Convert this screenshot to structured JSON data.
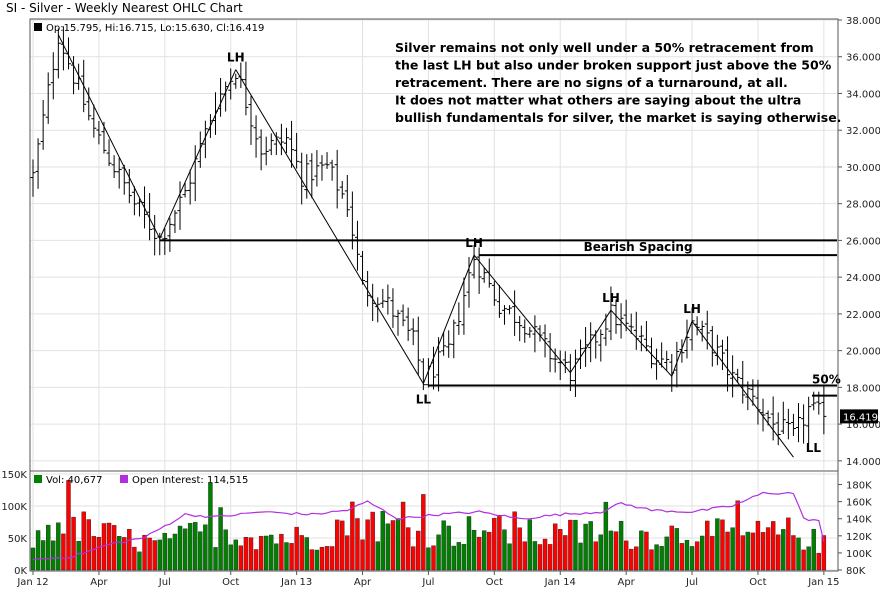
{
  "chart_data": [
    {
      "type": "ohlc",
      "title": "SI - Silver - Weekly Nearest OHLC Chart",
      "ohlc_label": "Op:15.795, Hi:16.715, Lo:15.630, Cl:16.419",
      "last_close_label": "16.419",
      "last_close": 16.419,
      "ylim": [
        13.5,
        38.0
      ],
      "y_ticks": [
        "38.000",
        "36.000",
        "34.000",
        "32.000",
        "30.000",
        "28.000",
        "26.000",
        "24.000",
        "22.000",
        "20.000",
        "18.000",
        "16.000",
        "14.000"
      ],
      "y_tick_values": [
        38,
        36,
        34,
        32,
        30,
        28,
        26,
        24,
        22,
        20,
        18,
        16,
        14
      ],
      "x_ticks": [
        "Jan 12",
        "Apr",
        "Jul",
        "Oct",
        "Jan 13",
        "Apr",
        "Jul",
        "Oct",
        "Jan 14",
        "Apr",
        "Jul",
        "Oct",
        "Jan 15"
      ],
      "week_range": [
        0,
        158
      ],
      "x_tick_weeks": [
        0,
        13,
        26,
        39,
        52,
        65,
        78,
        91,
        104,
        117,
        130,
        143,
        156
      ],
      "anchors": [
        {
          "w": 0,
          "p": 29.5
        },
        {
          "w": 5,
          "p": 37.2
        },
        {
          "w": 12,
          "p": 32.0
        },
        {
          "w": 20,
          "p": 28.0
        },
        {
          "w": 25,
          "p": 26.1
        },
        {
          "w": 30,
          "p": 28.6
        },
        {
          "w": 36,
          "p": 33.5
        },
        {
          "w": 40,
          "p": 35.3
        },
        {
          "w": 45,
          "p": 31.0
        },
        {
          "w": 50,
          "p": 31.5
        },
        {
          "w": 53,
          "p": 29.5
        },
        {
          "w": 58,
          "p": 30.0
        },
        {
          "w": 62,
          "p": 28.0
        },
        {
          "w": 65,
          "p": 23.5
        },
        {
          "w": 70,
          "p": 22.5
        },
        {
          "w": 75,
          "p": 20.5
        },
        {
          "w": 77,
          "p": 18.4
        },
        {
          "w": 82,
          "p": 20.0
        },
        {
          "w": 87,
          "p": 25.1
        },
        {
          "w": 92,
          "p": 22.5
        },
        {
          "w": 97,
          "p": 21.5
        },
        {
          "w": 102,
          "p": 19.8
        },
        {
          "w": 106,
          "p": 18.8
        },
        {
          "w": 110,
          "p": 20.3
        },
        {
          "w": 114,
          "p": 22.0
        },
        {
          "w": 118,
          "p": 21.0
        },
        {
          "w": 123,
          "p": 19.6
        },
        {
          "w": 126,
          "p": 19.3
        },
        {
          "w": 130,
          "p": 21.5
        },
        {
          "w": 134,
          "p": 20.3
        },
        {
          "w": 138,
          "p": 18.5
        },
        {
          "w": 142,
          "p": 17.4
        },
        {
          "w": 146,
          "p": 16.0
        },
        {
          "w": 150,
          "p": 15.3
        },
        {
          "w": 153,
          "p": 16.8
        },
        {
          "w": 156,
          "p": 16.4
        }
      ],
      "notes": [
        "Silver remains not only well under a 50% retracement from",
        "the last LH but also under broken support just above the 50%",
        "retracement.  There are no signs of a turnaround, at all.",
        "It does not matter what others are saying about the ultra",
        "bullish fundamentals for silver, the market is saying otherwise."
      ],
      "annotations": {
        "lh_labels": [
          "LH",
          "LH",
          "LH",
          "LH"
        ],
        "lh_points": [
          {
            "w": 40,
            "p": 35.3
          },
          {
            "w": 87,
            "p": 25.2
          },
          {
            "w": 114,
            "p": 22.2
          },
          {
            "w": 130,
            "p": 21.6
          }
        ],
        "ll_labels": [
          "LL",
          "LL"
        ],
        "ll_points": [
          {
            "w": 77,
            "p": 18.2
          },
          {
            "w": 150,
            "p": 14.2
          }
        ],
        "bearish_spacing": "Bearish Spacing",
        "fifty_pct": "50%",
        "support_level": 26.0,
        "lh_level": 25.2,
        "fifty_level": 18.1,
        "low_level_1": 17.55,
        "trend_lines": [
          [
            {
              "w": 5,
              "p": 37.2
            },
            {
              "w": 25,
              "p": 26.1
            }
          ],
          [
            {
              "w": 25,
              "p": 26.1
            },
            {
              "w": 40,
              "p": 35.3
            }
          ],
          [
            {
              "w": 40,
              "p": 35.3
            },
            {
              "w": 77,
              "p": 18.2
            }
          ],
          [
            {
              "w": 77,
              "p": 18.2
            },
            {
              "w": 87,
              "p": 25.2
            }
          ],
          [
            {
              "w": 87,
              "p": 25.2
            },
            {
              "w": 106,
              "p": 18.8
            }
          ],
          [
            {
              "w": 106,
              "p": 18.8
            },
            {
              "w": 114,
              "p": 22.2
            }
          ],
          [
            {
              "w": 114,
              "p": 22.2
            },
            {
              "w": 126,
              "p": 18.6
            }
          ],
          [
            {
              "w": 126,
              "p": 18.6
            },
            {
              "w": 130,
              "p": 21.6
            }
          ],
          [
            {
              "w": 130,
              "p": 21.6
            },
            {
              "w": 150,
              "p": 14.2
            }
          ]
        ]
      }
    },
    {
      "type": "bar+line",
      "vol_label": "Vol: 40,677",
      "oi_label": "Open Interest: 114,515",
      "colors": {
        "up": "#008000",
        "down": "#ff0000",
        "oi": "#b030e0",
        "neutral": "#000080"
      },
      "left_ticks": [
        "150K",
        "100K",
        "50K",
        "0K"
      ],
      "left_tick_values": [
        150,
        100,
        50,
        0
      ],
      "left_max": 150,
      "right_ticks": [
        "180K",
        "160K",
        "140K",
        "120K",
        "100K",
        "80K"
      ],
      "right_tick_values": [
        180,
        160,
        140,
        120,
        100,
        80
      ],
      "right_range": [
        80,
        190
      ],
      "vol_anchors": [
        {
          "w": 0,
          "v": 45
        },
        {
          "w": 5,
          "v": 80
        },
        {
          "w": 15,
          "v": 55
        },
        {
          "w": 25,
          "v": 40
        },
        {
          "w": 35,
          "v": 65
        },
        {
          "w": 45,
          "v": 55
        },
        {
          "w": 55,
          "v": 50
        },
        {
          "w": 64,
          "v": 85
        },
        {
          "w": 70,
          "v": 70
        },
        {
          "w": 80,
          "v": 60
        },
        {
          "w": 90,
          "v": 65
        },
        {
          "w": 100,
          "v": 55
        },
        {
          "w": 110,
          "v": 60
        },
        {
          "w": 120,
          "v": 55
        },
        {
          "w": 130,
          "v": 60
        },
        {
          "w": 140,
          "v": 55
        },
        {
          "w": 150,
          "v": 60
        },
        {
          "w": 156,
          "v": 40
        }
      ],
      "oi_anchors": [
        {
          "w": 0,
          "v": 92
        },
        {
          "w": 8,
          "v": 96
        },
        {
          "w": 15,
          "v": 110
        },
        {
          "w": 22,
          "v": 118
        },
        {
          "w": 30,
          "v": 145
        },
        {
          "w": 36,
          "v": 142
        },
        {
          "w": 45,
          "v": 148
        },
        {
          "w": 55,
          "v": 145
        },
        {
          "w": 62,
          "v": 150
        },
        {
          "w": 66,
          "v": 160
        },
        {
          "w": 72,
          "v": 140
        },
        {
          "w": 80,
          "v": 145
        },
        {
          "w": 88,
          "v": 148
        },
        {
          "w": 96,
          "v": 140
        },
        {
          "w": 104,
          "v": 145
        },
        {
          "w": 112,
          "v": 148
        },
        {
          "w": 116,
          "v": 158
        },
        {
          "w": 122,
          "v": 150
        },
        {
          "w": 130,
          "v": 148
        },
        {
          "w": 138,
          "v": 155
        },
        {
          "w": 144,
          "v": 170
        },
        {
          "w": 150,
          "v": 170
        },
        {
          "w": 152,
          "v": 140
        },
        {
          "w": 155,
          "v": 138
        },
        {
          "w": 156,
          "v": 112
        }
      ]
    }
  ]
}
